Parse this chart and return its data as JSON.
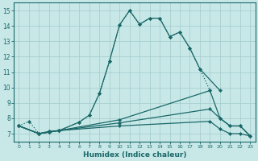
{
  "background_color": "#c8e8e8",
  "grid_color": "#a8cece",
  "line_color": "#1a6868",
  "x_label": "Humidex (Indice chaleur)",
  "ylim": [
    6.5,
    15.5
  ],
  "xlim": [
    -0.5,
    23.5
  ],
  "y_ticks": [
    7,
    8,
    9,
    10,
    11,
    12,
    13,
    14,
    15
  ],
  "figsize": [
    3.2,
    2.0
  ],
  "dpi": 100,
  "curves": [
    {
      "name": "dotted_high",
      "x": [
        0,
        1,
        2,
        3,
        4,
        6,
        7,
        8,
        9,
        10,
        11,
        12,
        13,
        14,
        15,
        16,
        17,
        18,
        19
      ],
      "y": [
        7.5,
        7.8,
        7.0,
        7.15,
        7.2,
        7.75,
        8.2,
        9.6,
        11.7,
        14.05,
        15.0,
        14.1,
        14.5,
        14.5,
        13.3,
        13.6,
        12.55,
        11.2,
        9.8
      ],
      "linestyle": ":",
      "linewidth": 0.9,
      "marker": "D",
      "markersize": 2.0
    },
    {
      "name": "solid_high",
      "x": [
        0,
        2,
        3,
        4,
        6,
        7,
        8,
        9,
        10,
        11,
        12,
        13,
        14,
        15,
        16,
        17,
        18,
        20
      ],
      "y": [
        7.5,
        7.0,
        7.15,
        7.2,
        7.75,
        8.2,
        9.6,
        11.7,
        14.05,
        15.0,
        14.1,
        14.5,
        14.5,
        13.3,
        13.6,
        12.55,
        11.2,
        9.8
      ],
      "linestyle": "-",
      "linewidth": 0.9,
      "marker": "D",
      "markersize": 2.0
    },
    {
      "name": "flat_upper",
      "x": [
        0,
        2,
        3,
        4,
        10,
        19,
        20,
        21,
        22,
        23
      ],
      "y": [
        7.5,
        7.0,
        7.1,
        7.2,
        7.9,
        9.8,
        8.0,
        7.5,
        7.5,
        6.85
      ],
      "linestyle": "-",
      "linewidth": 0.9,
      "marker": "D",
      "markersize": 2.0
    },
    {
      "name": "flat_mid",
      "x": [
        0,
        2,
        3,
        4,
        10,
        19,
        20,
        21,
        22,
        23
      ],
      "y": [
        7.5,
        7.0,
        7.1,
        7.2,
        7.7,
        8.6,
        8.0,
        7.5,
        7.5,
        6.85
      ],
      "linestyle": "-",
      "linewidth": 0.9,
      "marker": "D",
      "markersize": 2.0
    },
    {
      "name": "flat_low",
      "x": [
        0,
        2,
        3,
        4,
        10,
        19,
        20,
        21,
        22,
        23
      ],
      "y": [
        7.5,
        7.0,
        7.1,
        7.2,
        7.5,
        7.8,
        7.3,
        7.0,
        7.0,
        6.85
      ],
      "linestyle": "-",
      "linewidth": 0.9,
      "marker": "D",
      "markersize": 2.0
    }
  ]
}
